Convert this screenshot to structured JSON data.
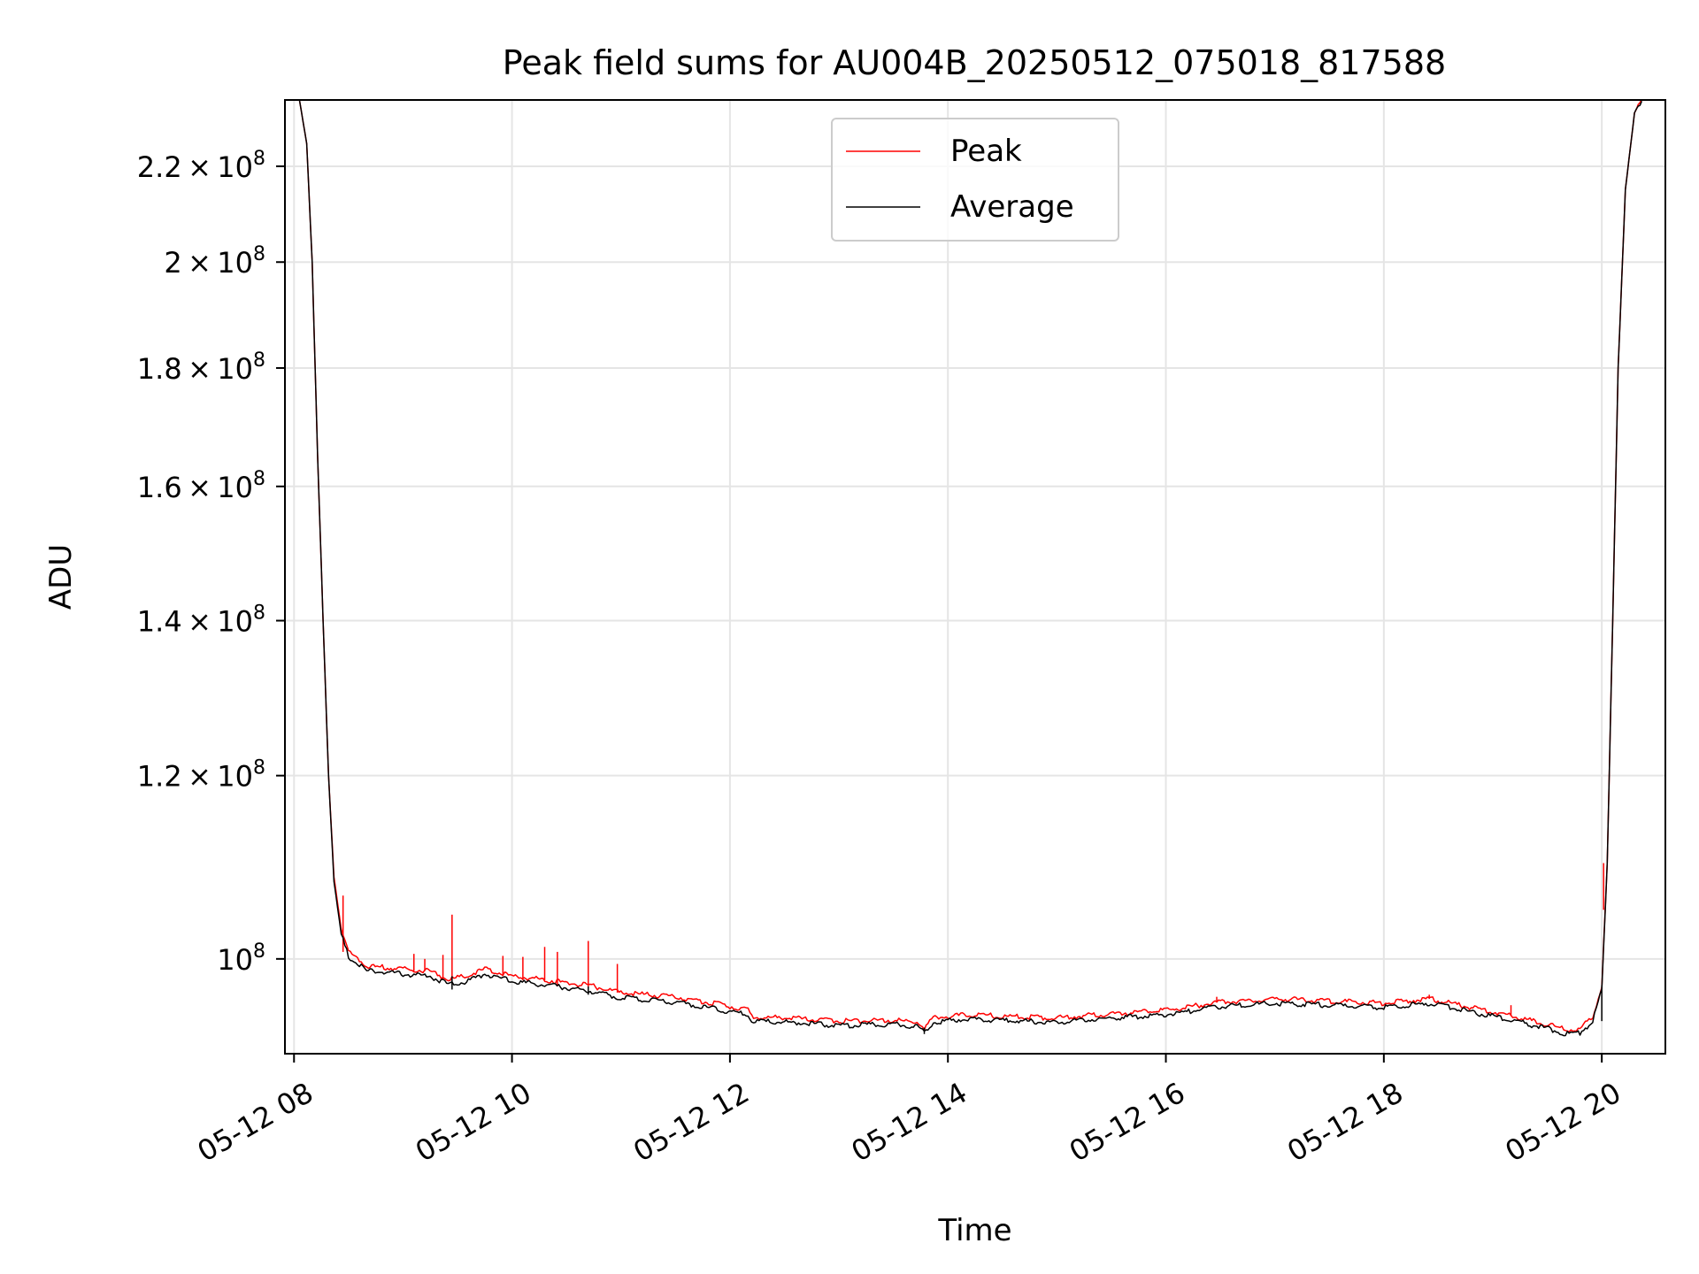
{
  "chart_data": {
    "type": "line",
    "title": "Peak field sums for AU004B_20250512_075018_817588",
    "xlabel": "Time",
    "ylabel": "ADU",
    "y_scale": "log",
    "xlim": [
      "05-12 07:55",
      "05-12 20:35"
    ],
    "ylim": [
      91000000,
      235000000
    ],
    "grid": true,
    "legend_position": "upper center",
    "x_ticks": [
      {
        "value": "05-12 08:00",
        "label": "05-12 08"
      },
      {
        "value": "05-12 10:00",
        "label": "05-12 10"
      },
      {
        "value": "05-12 12:00",
        "label": "05-12 12"
      },
      {
        "value": "05-12 14:00",
        "label": "05-12 14"
      },
      {
        "value": "05-12 16:00",
        "label": "05-12 16"
      },
      {
        "value": "05-12 18:00",
        "label": "05-12 18"
      },
      {
        "value": "05-12 20:00",
        "label": "05-12 20"
      }
    ],
    "y_ticks": [
      {
        "value": 100000000,
        "mantissa": "",
        "exp": "8"
      },
      {
        "value": 120000000,
        "mantissa": "1.2",
        "exp": "8"
      },
      {
        "value": 140000000,
        "mantissa": "1.4",
        "exp": "8"
      },
      {
        "value": 160000000,
        "mantissa": "1.6",
        "exp": "8"
      },
      {
        "value": 180000000,
        "mantissa": "1.8",
        "exp": "8"
      },
      {
        "value": 200000000,
        "mantissa": "2",
        "exp": "8"
      },
      {
        "value": 220000000,
        "mantissa": "2.2",
        "exp": "8"
      }
    ],
    "series": [
      {
        "name": "Average",
        "color": "#000000",
        "points": [
          [
            "05-12 08:03",
            235000000
          ],
          [
            "05-12 08:07",
            225000000
          ],
          [
            "05-12 08:10",
            200000000
          ],
          [
            "05-12 08:13",
            165000000
          ],
          [
            "05-12 08:16",
            140000000
          ],
          [
            "05-12 08:19",
            120000000
          ],
          [
            "05-12 08:22",
            108000000
          ],
          [
            "05-12 08:26",
            102500000
          ],
          [
            "05-12 08:30",
            100200000
          ],
          [
            "05-12 08:40",
            98800000
          ],
          [
            "05-12 09:00",
            98500000
          ],
          [
            "05-12 09:15",
            98300000
          ],
          [
            "05-12 09:25",
            97500000
          ],
          [
            "05-12 09:35",
            97800000
          ],
          [
            "05-12 09:45",
            98500000
          ],
          [
            "05-12 10:00",
            97800000
          ],
          [
            "05-12 10:20",
            97400000
          ],
          [
            "05-12 10:45",
            96800000
          ],
          [
            "05-12 11:00",
            96200000
          ],
          [
            "05-12 11:30",
            95800000
          ],
          [
            "05-12 12:00",
            94900000
          ],
          [
            "05-12 12:10",
            94600000
          ],
          [
            "05-12 12:12",
            94000000
          ],
          [
            "05-12 12:30",
            93900000
          ],
          [
            "05-12 13:00",
            93600000
          ],
          [
            "05-12 13:30",
            93700000
          ],
          [
            "05-12 13:43",
            93500000
          ],
          [
            "05-12 13:47",
            93000000
          ],
          [
            "05-12 13:52",
            93900000
          ],
          [
            "05-12 14:10",
            94200000
          ],
          [
            "05-12 14:40",
            94000000
          ],
          [
            "05-12 15:00",
            93900000
          ],
          [
            "05-12 15:30",
            94300000
          ],
          [
            "05-12 16:00",
            94600000
          ],
          [
            "05-12 16:30",
            95400000
          ],
          [
            "05-12 17:00",
            95700000
          ],
          [
            "05-12 17:30",
            95500000
          ],
          [
            "05-12 18:00",
            95300000
          ],
          [
            "05-12 18:25",
            95700000
          ],
          [
            "05-12 18:50",
            94800000
          ],
          [
            "05-12 19:10",
            94100000
          ],
          [
            "05-12 19:30",
            93300000
          ],
          [
            "05-12 19:40",
            92800000
          ],
          [
            "05-12 19:48",
            92900000
          ],
          [
            "05-12 19:55",
            94000000
          ],
          [
            "05-12 20:00",
            97000000
          ],
          [
            "05-12 20:03",
            110000000
          ],
          [
            "05-12 20:06",
            140000000
          ],
          [
            "05-12 20:09",
            180000000
          ],
          [
            "05-12 20:13",
            215000000
          ],
          [
            "05-12 20:18",
            232000000
          ],
          [
            "05-12 20:22",
            235000000
          ]
        ]
      },
      {
        "name": "Peak",
        "color": "#ff0000",
        "points": [
          [
            "05-12 08:03",
            235000000
          ],
          [
            "05-12 08:07",
            225000000
          ],
          [
            "05-12 08:10",
            200000000
          ],
          [
            "05-12 08:13",
            165000000
          ],
          [
            "05-12 08:16",
            140000000
          ],
          [
            "05-12 08:19",
            120000000
          ],
          [
            "05-12 08:22",
            108500000
          ],
          [
            "05-12 08:26",
            103000000
          ],
          [
            "05-12 08:30",
            100700000
          ],
          [
            "05-12 08:40",
            99300000
          ],
          [
            "05-12 09:00",
            99000000
          ],
          [
            "05-12 09:15",
            98800000
          ],
          [
            "05-12 09:25",
            98000000
          ],
          [
            "05-12 09:35",
            98300000
          ],
          [
            "05-12 09:45",
            99000000
          ],
          [
            "05-12 10:00",
            98300000
          ],
          [
            "05-12 10:20",
            97900000
          ],
          [
            "05-12 10:45",
            97300000
          ],
          [
            "05-12 11:00",
            96700000
          ],
          [
            "05-12 11:30",
            96300000
          ],
          [
            "05-12 12:00",
            95400000
          ],
          [
            "05-12 12:10",
            95100000
          ],
          [
            "05-12 12:12",
            94400000
          ],
          [
            "05-12 12:30",
            94300000
          ],
          [
            "05-12 13:00",
            94000000
          ],
          [
            "05-12 13:30",
            94100000
          ],
          [
            "05-12 13:43",
            93900000
          ],
          [
            "05-12 13:47",
            93400000
          ],
          [
            "05-12 13:52",
            94300000
          ],
          [
            "05-12 14:10",
            94600000
          ],
          [
            "05-12 14:40",
            94400000
          ],
          [
            "05-12 15:00",
            94300000
          ],
          [
            "05-12 15:30",
            94700000
          ],
          [
            "05-12 16:00",
            95000000
          ],
          [
            "05-12 16:30",
            95800000
          ],
          [
            "05-12 17:00",
            96100000
          ],
          [
            "05-12 17:30",
            95900000
          ],
          [
            "05-12 18:00",
            95700000
          ],
          [
            "05-12 18:25",
            96100000
          ],
          [
            "05-12 18:50",
            95200000
          ],
          [
            "05-12 19:10",
            94500000
          ],
          [
            "05-12 19:30",
            93700000
          ],
          [
            "05-12 19:40",
            93200000
          ],
          [
            "05-12 19:48",
            93300000
          ],
          [
            "05-12 19:55",
            94400000
          ],
          [
            "05-12 20:00",
            97400000
          ],
          [
            "05-12 20:03",
            110000000
          ],
          [
            "05-12 20:06",
            140000000
          ],
          [
            "05-12 20:09",
            180000000
          ],
          [
            "05-12 20:13",
            215000000
          ],
          [
            "05-12 20:18",
            232000000
          ],
          [
            "05-12 20:22",
            235000000
          ]
        ],
        "spikes": [
          [
            "05-12 08:27",
            106500000
          ],
          [
            "05-12 09:06",
            100500000
          ],
          [
            "05-12 09:12",
            100000000
          ],
          [
            "05-12 09:22",
            100400000
          ],
          [
            "05-12 09:27",
            104500000
          ],
          [
            "05-12 09:55",
            100300000
          ],
          [
            "05-12 10:06",
            100200000
          ],
          [
            "05-12 10:18",
            101200000
          ],
          [
            "05-12 10:25",
            100700000
          ],
          [
            "05-12 10:42",
            101800000
          ],
          [
            "05-12 10:58",
            99500000
          ],
          [
            "05-12 16:28",
            96300000
          ],
          [
            "05-12 18:25",
            96500000
          ],
          [
            "05-12 19:10",
            95500000
          ],
          [
            "05-12 20:01",
            105000000
          ]
        ],
        "dips": [
          [
            "05-12 09:27",
            97000000
          ],
          [
            "05-12 10:42",
            96500000
          ],
          [
            "05-12 13:47",
            92800000
          ],
          [
            "05-12 20:00",
            94000000
          ]
        ]
      }
    ]
  }
}
